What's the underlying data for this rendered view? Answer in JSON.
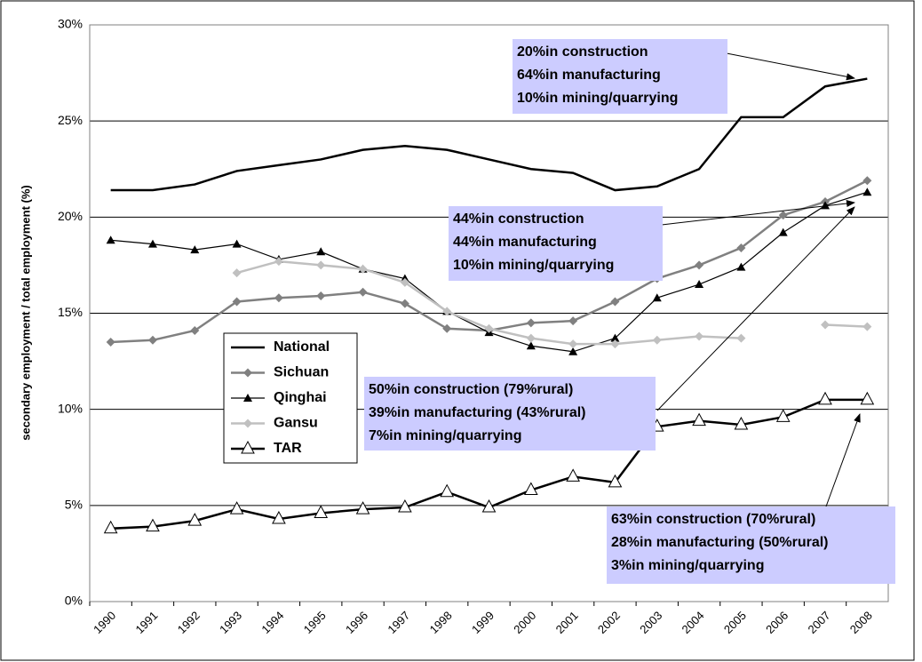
{
  "chart_data": {
    "type": "line",
    "y_label": "secondary employment / total employment (%)",
    "categories": [
      "1990",
      "1991",
      "1992",
      "1993",
      "1994",
      "1995",
      "1996",
      "1997",
      "1998",
      "1999",
      "2000",
      "2001",
      "2002",
      "2003",
      "2004",
      "2005",
      "2006",
      "2007",
      "2008"
    ],
    "ylim": [
      0,
      30
    ],
    "yticks": [
      {
        "value": 0,
        "label": "0%"
      },
      {
        "value": 5,
        "label": "5%"
      },
      {
        "value": 10,
        "label": "10%"
      },
      {
        "value": 15,
        "label": "15%"
      },
      {
        "value": 20,
        "label": "20%"
      },
      {
        "value": 25,
        "label": "25%"
      },
      {
        "value": 30,
        "label": "30%"
      }
    ],
    "grid": true,
    "series": [
      {
        "name": "National",
        "color": "#000000",
        "marker": "none",
        "values": [
          21.4,
          21.4,
          21.7,
          22.4,
          22.7,
          23.0,
          23.5,
          23.7,
          23.5,
          23.0,
          22.5,
          22.3,
          21.4,
          21.6,
          22.5,
          25.2,
          25.2,
          26.8,
          27.2
        ]
      },
      {
        "name": "Sichuan",
        "color": "#808080",
        "marker": "diamond",
        "values": [
          13.5,
          13.6,
          14.1,
          15.6,
          15.8,
          15.9,
          16.1,
          15.5,
          14.2,
          14.1,
          14.5,
          14.6,
          15.6,
          16.8,
          17.5,
          18.4,
          20.1,
          20.8,
          21.9
        ]
      },
      {
        "name": "Qinghai",
        "color": "#000000",
        "marker": "triangle",
        "values": [
          18.8,
          18.6,
          18.3,
          18.6,
          17.8,
          18.2,
          17.3,
          16.8,
          15.1,
          14.0,
          13.3,
          13.0,
          13.7,
          15.8,
          16.5,
          17.4,
          19.2,
          20.6,
          21.3
        ]
      },
      {
        "name": "Gansu",
        "color": "#c0c0c0",
        "marker": "diamond",
        "values": [
          null,
          null,
          null,
          17.1,
          17.7,
          17.5,
          17.3,
          16.6,
          15.1,
          14.2,
          13.7,
          13.4,
          13.4,
          13.6,
          13.8,
          13.7,
          null,
          14.4,
          14.3
        ]
      },
      {
        "name": "TAR",
        "color": "#000000",
        "marker": "open-triangle",
        "values": [
          3.8,
          3.9,
          4.2,
          4.8,
          4.3,
          4.6,
          4.8,
          4.9,
          5.7,
          4.9,
          5.8,
          6.5,
          6.2,
          9.1,
          9.4,
          9.2,
          9.6,
          10.5,
          10.5
        ]
      }
    ],
    "annotations": [
      {
        "lines": [
          "20%in construction",
          "64%in manufacturing",
          "10%in mining/quarrying"
        ]
      },
      {
        "lines": [
          "44%in construction",
          "44%in manufacturing",
          "10%in mining/quarrying"
        ]
      },
      {
        "lines": [
          "50%in construction (79%rural)",
          "39%in manufacturing (43%rural)",
          "7%in mining/quarrying"
        ]
      },
      {
        "lines": [
          "63%in construction (70%rural)",
          "28%in manufacturing (50%rural)",
          "3%in mining/quarrying"
        ]
      }
    ]
  }
}
